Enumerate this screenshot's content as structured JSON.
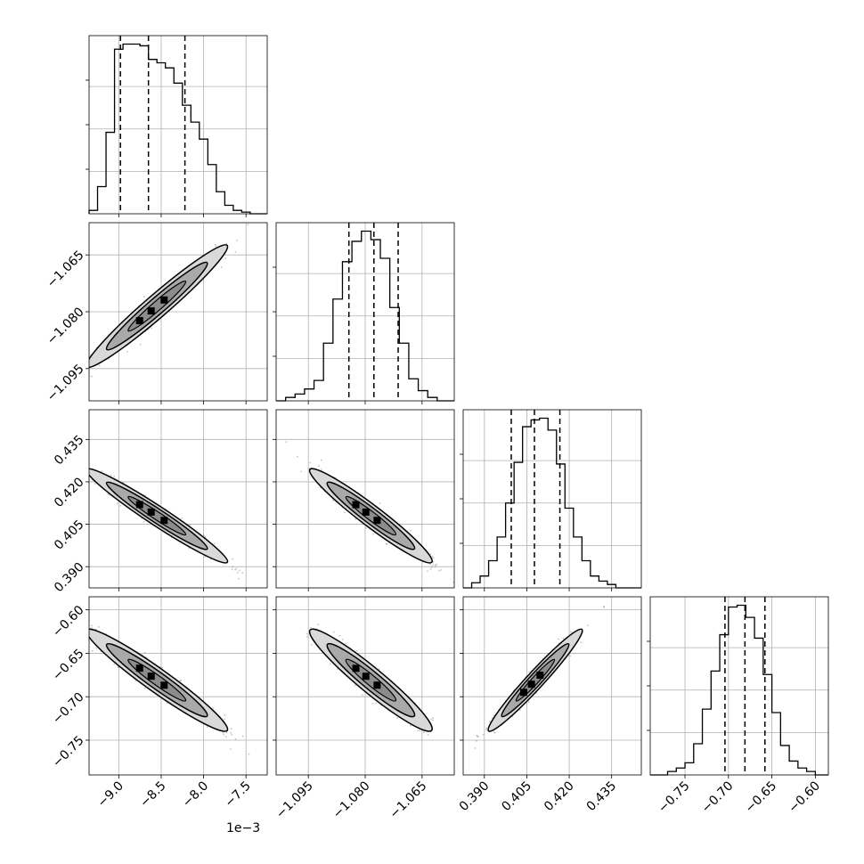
{
  "chart_data": {
    "type": "corner",
    "title": "",
    "x_offset_label": "1e−3",
    "parameters": [
      {
        "range": [
          -9.35,
          -7.25
        ],
        "ticks": [
          -9.0,
          -8.5,
          -8.0,
          -7.5
        ],
        "tick_labels": [
          "−9.0",
          "−8.5",
          "−8.0",
          "−7.5"
        ],
        "quantiles": [
          -8.98,
          -8.65,
          -8.22
        ],
        "hist_edges": [
          -9.35,
          -9.25,
          -9.15,
          -9.05,
          -8.95,
          -8.85,
          -8.75,
          -8.65,
          -8.55,
          -8.45,
          -8.35,
          -8.25,
          -8.15,
          -8.05,
          -7.95,
          -7.85,
          -7.75,
          -7.65,
          -7.55,
          -7.45,
          -7.35,
          -7.25
        ],
        "hist_counts": [
          0.02,
          0.16,
          0.48,
          0.97,
          1.0,
          1.0,
          0.99,
          0.91,
          0.89,
          0.86,
          0.77,
          0.64,
          0.54,
          0.44,
          0.29,
          0.13,
          0.05,
          0.02,
          0.01,
          0,
          0
        ]
      },
      {
        "range": [
          -1.1035,
          -1.0565
        ],
        "ticks": [
          -1.095,
          -1.08,
          -1.065
        ],
        "tick_labels": [
          "−1.095",
          "−1.080",
          "−1.065"
        ],
        "quantiles": [
          -1.0843,
          -1.0777,
          -1.0713
        ],
        "hist_edges": [
          -1.1035,
          -1.101,
          -1.0985,
          -1.096,
          -1.0935,
          -1.091,
          -1.0885,
          -1.086,
          -1.0835,
          -1.081,
          -1.0785,
          -1.076,
          -1.0735,
          -1.071,
          -1.0685,
          -1.066,
          -1.0635,
          -1.061,
          -1.0585,
          -1.0565
        ],
        "hist_counts": [
          0,
          0.02,
          0.04,
          0.07,
          0.12,
          0.34,
          0.6,
          0.82,
          0.94,
          1.0,
          0.95,
          0.84,
          0.55,
          0.34,
          0.13,
          0.06,
          0.02,
          0,
          0
        ]
      },
      {
        "range": [
          0.3825,
          0.4455
        ],
        "ticks": [
          0.39,
          0.405,
          0.42,
          0.435
        ],
        "tick_labels": [
          "0.390",
          "0.405",
          "0.420",
          "0.435"
        ],
        "quantiles": [
          0.3995,
          0.4077,
          0.4167
        ],
        "hist_edges": [
          0.3825,
          0.3855,
          0.3885,
          0.3915,
          0.3945,
          0.3975,
          0.4005,
          0.4035,
          0.4065,
          0.4095,
          0.4125,
          0.4155,
          0.4185,
          0.4215,
          0.4245,
          0.4275,
          0.4305,
          0.4335,
          0.4365,
          0.4395,
          0.4425,
          0.4455
        ],
        "hist_counts": [
          0,
          0.03,
          0.07,
          0.16,
          0.3,
          0.5,
          0.74,
          0.95,
          0.99,
          1.0,
          0.93,
          0.73,
          0.47,
          0.3,
          0.16,
          0.07,
          0.04,
          0.02,
          0,
          0,
          0
        ]
      },
      {
        "range": [
          -0.79,
          -0.585
        ],
        "ticks": [
          -0.75,
          -0.7,
          -0.65,
          -0.6
        ],
        "tick_labels": [
          "−0.75",
          "−0.70",
          "−0.65",
          "−0.60"
        ],
        "quantiles": [
          -0.704,
          -0.681,
          -0.658
        ],
        "hist_edges": [
          -0.79,
          -0.78,
          -0.77,
          -0.76,
          -0.75,
          -0.74,
          -0.73,
          -0.72,
          -0.71,
          -0.7,
          -0.69,
          -0.68,
          -0.67,
          -0.66,
          -0.65,
          -0.64,
          -0.63,
          -0.62,
          -0.61,
          -0.6,
          -0.59,
          -0.585
        ],
        "hist_counts": [
          0,
          0,
          0.02,
          0.04,
          0.07,
          0.18,
          0.38,
          0.6,
          0.81,
          0.97,
          0.98,
          0.91,
          0.79,
          0.58,
          0.36,
          0.17,
          0.08,
          0.04,
          0.02,
          0,
          0
        ]
      }
    ],
    "pairs": [
      {
        "row": 1,
        "col": 0,
        "mean": [
          -8.55,
          -1.0785
        ],
        "sd": [
          0.34,
          0.0066
        ],
        "rho": 0.97
      },
      {
        "row": 2,
        "col": 0,
        "mean": [
          -8.55,
          0.408
        ],
        "sd": [
          0.34,
          0.0068
        ],
        "rho": -0.97
      },
      {
        "row": 2,
        "col": 1,
        "mean": [
          -1.0785,
          0.408
        ],
        "sd": [
          0.0066,
          0.0068
        ],
        "rho": -0.96
      },
      {
        "row": 3,
        "col": 0,
        "mean": [
          -8.55,
          -0.681
        ],
        "sd": [
          0.34,
          0.024
        ],
        "rho": -0.96
      },
      {
        "row": 3,
        "col": 1,
        "mean": [
          -1.0785,
          -0.681
        ],
        "sd": [
          0.0066,
          0.024
        ],
        "rho": -0.95
      },
      {
        "row": 3,
        "col": 2,
        "mean": [
          0.408,
          -0.681
        ],
        "sd": [
          0.0068,
          0.024
        ],
        "rho": 0.97
      }
    ],
    "grid": true,
    "colors": {
      "axis": "#000000",
      "grid": "#b0b0b0",
      "samples": "#555555",
      "fill_outer": "#d9d9d9",
      "fill_inner": "#8c8c8c",
      "density_peak": "#000000"
    }
  }
}
